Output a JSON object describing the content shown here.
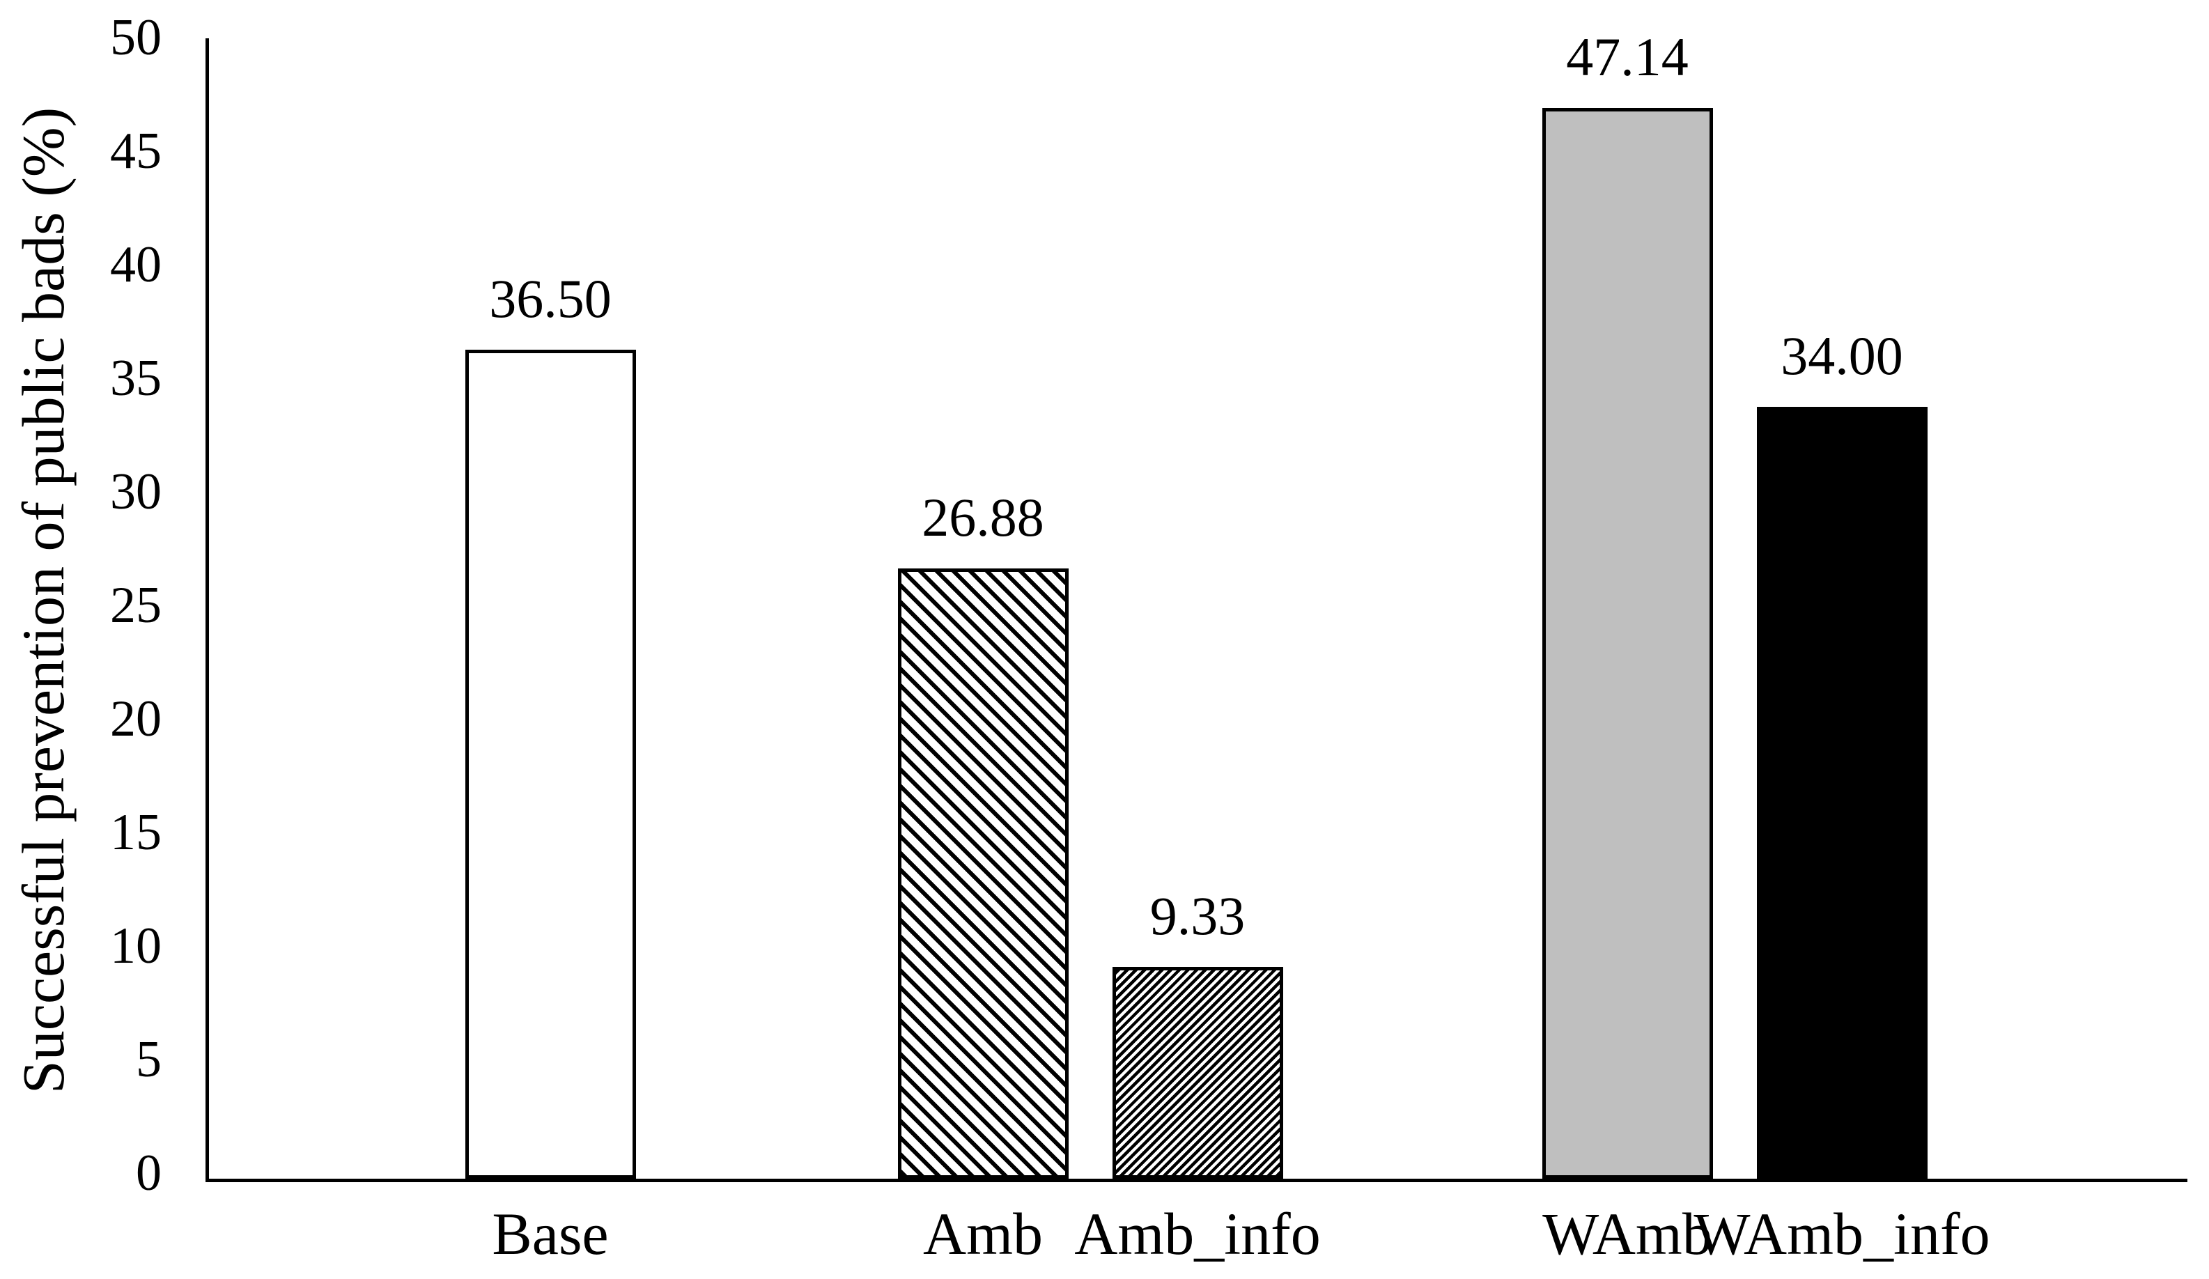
{
  "chart_data": {
    "type": "bar",
    "title": "",
    "xlabel": "",
    "ylabel": "Successful prevention of public bads (%)",
    "categories": [
      "Base",
      "Amb",
      "Amb_info",
      "WAmb",
      "WAmb_info"
    ],
    "values": [
      36.5,
      26.88,
      9.33,
      47.14,
      34.0
    ],
    "value_labels": [
      "36.50",
      "26.88",
      "9.33",
      "47.14",
      "34.00"
    ],
    "ylim": [
      0,
      50
    ],
    "ytick_interval": 5,
    "yticks": [
      "0",
      "5",
      "10",
      "15",
      "20",
      "25",
      "30",
      "35",
      "40",
      "45",
      "50"
    ],
    "grid": false,
    "legend": false,
    "bar_styles": [
      {
        "fill": "#ffffff",
        "pattern": "solid",
        "border": "#000000",
        "description": "white bar with black outline"
      },
      {
        "fill": "#ffffff",
        "pattern": "hatch-wide-backslash",
        "border": "#000000",
        "description": "wide black diagonal hatch, top-left to bottom-right"
      },
      {
        "fill": "#ffffff",
        "pattern": "hatch-fine-slash",
        "border": "#000000",
        "description": "fine black diagonal hatch, bottom-left to top-right"
      },
      {
        "fill": "#bfbfbf",
        "pattern": "solid",
        "border": "#000000",
        "description": "gray bar with black outline"
      },
      {
        "fill": "#000000",
        "pattern": "solid",
        "border": "#000000",
        "description": "solid black bar"
      }
    ],
    "colors": {
      "axis": "#000000",
      "text": "#000000",
      "background": "#ffffff",
      "gray_bar": "#bfbfbf"
    }
  }
}
